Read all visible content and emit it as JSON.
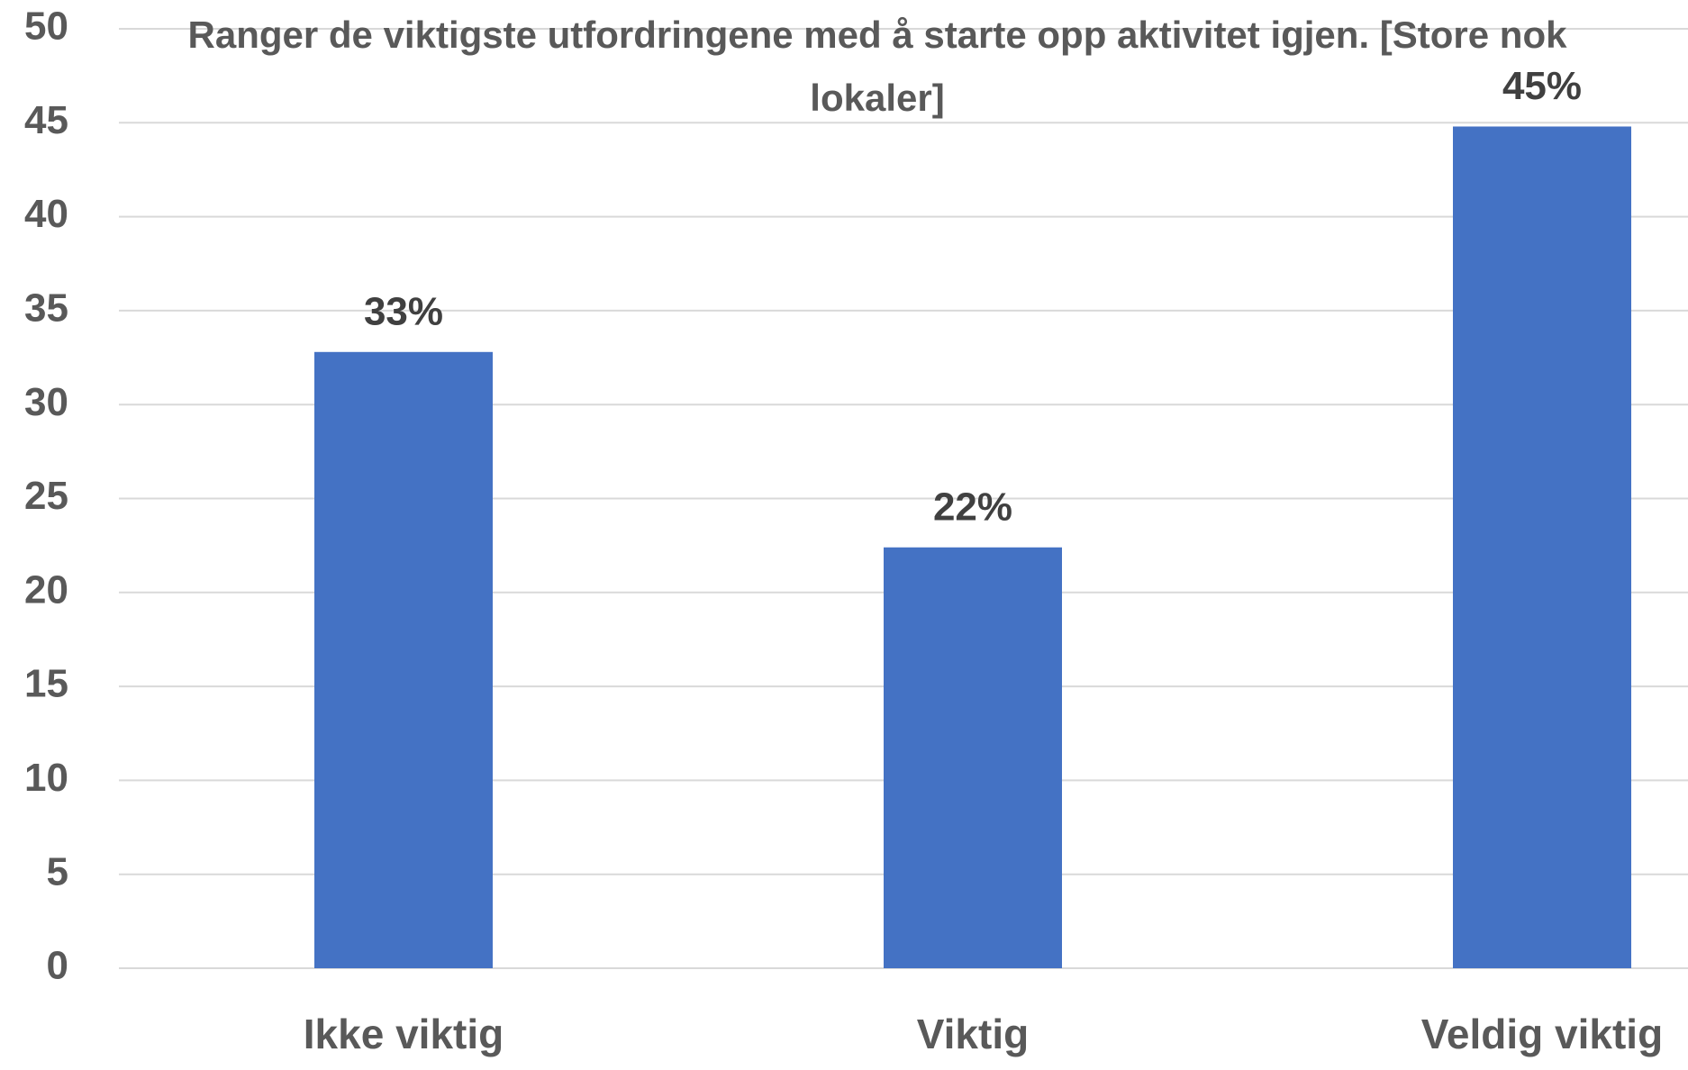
{
  "chart_data": {
    "type": "bar",
    "title": "Ranger de viktigste utfordringene med å starte opp aktivitet igjen. [Store nok lokaler]",
    "categories": [
      "Ikke viktig",
      "Viktig",
      "Veldig viktig"
    ],
    "values": [
      32.8,
      22.4,
      44.8
    ],
    "value_labels": [
      "33%",
      "22%",
      "45%"
    ],
    "color": "#4472c4",
    "ylim": [
      0,
      50
    ],
    "yticks": [
      0,
      5,
      10,
      15,
      20,
      25,
      30,
      35,
      40,
      45,
      50
    ],
    "grid": true
  }
}
